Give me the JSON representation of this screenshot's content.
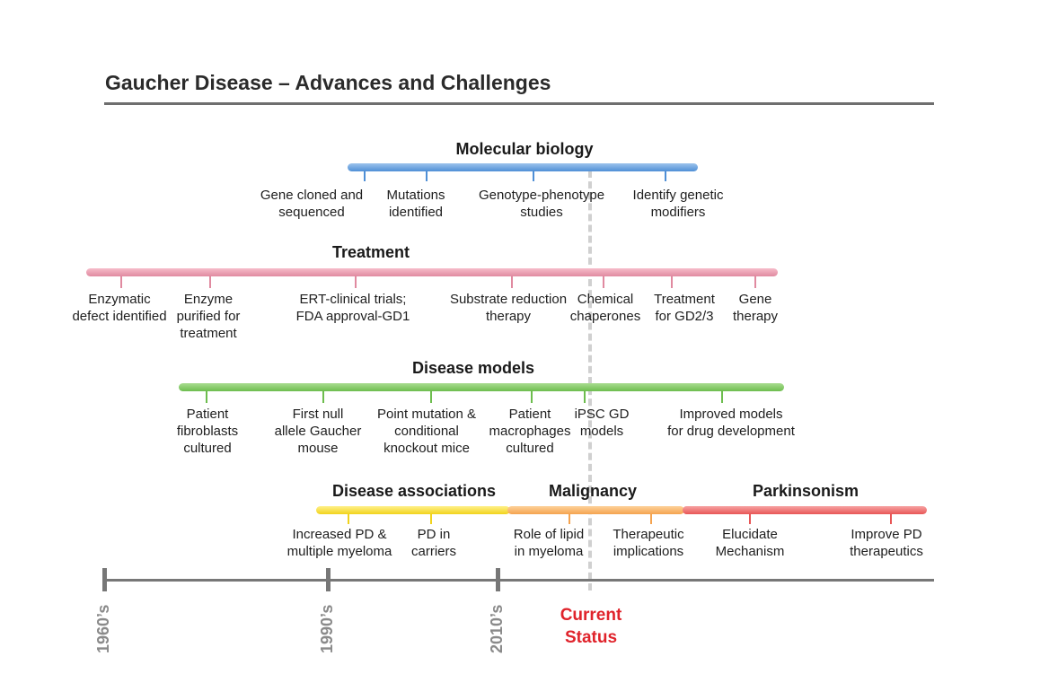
{
  "title": "Gaucher Disease – Advances and Challenges",
  "colors": {
    "molecular": "#4f8fd6",
    "treatment": "#e08aa0",
    "models": "#6dbd4e",
    "associations": "#f1d31c",
    "malignancy": "#f5a34f",
    "parkinsonism": "#e85656",
    "current_status": "#e0232b"
  },
  "tracks": {
    "molecular": {
      "heading": "Molecular biology",
      "items": [
        {
          "line1": "Gene cloned and",
          "line2": "sequenced"
        },
        {
          "line1": "Mutations",
          "line2": "identified"
        },
        {
          "line1": "Genotype-phenotype",
          "line2": "studies"
        },
        {
          "line1": "Identify genetic",
          "line2": "modifiers"
        }
      ]
    },
    "treatment": {
      "heading": "Treatment",
      "items": [
        {
          "line1": "Enzymatic",
          "line2": "defect identified"
        },
        {
          "line1": "Enzyme",
          "line2": "purified for",
          "line3": "treatment"
        },
        {
          "line1": "ERT-clinical trials;",
          "line2": "FDA approval-GD1"
        },
        {
          "line1": "Substrate reduction",
          "line2": "therapy"
        },
        {
          "line1": "Chemical",
          "line2": "chaperones"
        },
        {
          "line1": "Treatment",
          "line2": "for GD2/3"
        },
        {
          "line1": "Gene",
          "line2": "therapy"
        }
      ]
    },
    "models": {
      "heading": "Disease models",
      "items": [
        {
          "line1": "Patient",
          "line2": "fibroblasts",
          "line3": "cultured"
        },
        {
          "line1": "First null",
          "line2": "allele Gaucher",
          "line3": "mouse"
        },
        {
          "line1": "Point mutation &",
          "line2": "conditional",
          "line3": "knockout mice"
        },
        {
          "line1": "Patient",
          "line2": "macrophages",
          "line3": "cultured"
        },
        {
          "line1": "iPSC GD",
          "line2": "models"
        },
        {
          "line1": "Improved models",
          "line2": "for drug development"
        }
      ]
    },
    "associations": {
      "heading": "Disease associations",
      "items": [
        {
          "line1": "Increased PD &",
          "line2": "multiple myeloma"
        },
        {
          "line1": "PD in",
          "line2": "carriers"
        }
      ]
    },
    "malignancy": {
      "heading": "Malignancy",
      "items": [
        {
          "line1": "Role of lipid",
          "line2": "in myeloma"
        },
        {
          "line1": "Therapeutic",
          "line2": "implications"
        }
      ]
    },
    "parkinsonism": {
      "heading": "Parkinsonism",
      "items": [
        {
          "line1": "Elucidate",
          "line2": "Mechanism"
        },
        {
          "line1": "Improve PD",
          "line2": "therapeutics"
        }
      ]
    }
  },
  "timeline": {
    "decades": [
      "1960’s",
      "1990’s",
      "2010’s"
    ],
    "current_status": {
      "line1": "Current",
      "line2": "Status"
    }
  }
}
